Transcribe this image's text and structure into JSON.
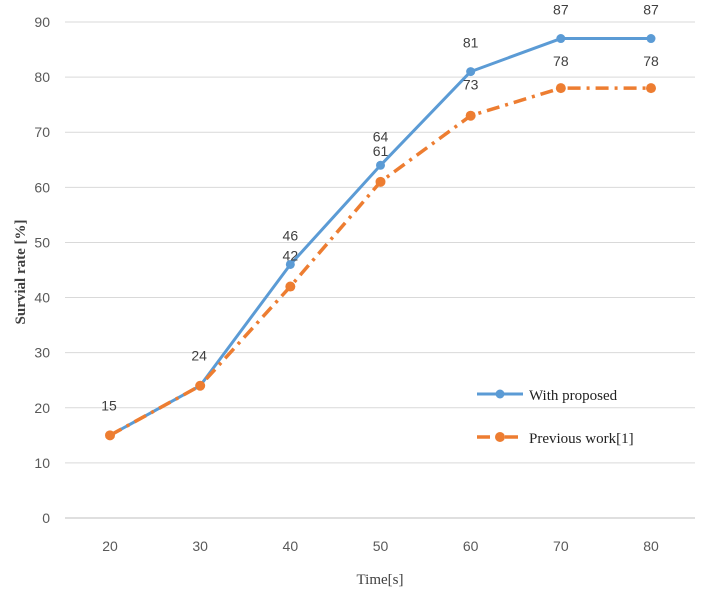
{
  "chart_data": {
    "type": "line",
    "title": "",
    "xlabel": "Time[s]",
    "ylabel": "Survial rate [%]",
    "categories": [
      20,
      30,
      40,
      50,
      60,
      70,
      80
    ],
    "ylim": [
      0,
      90
    ],
    "yticks": [
      0,
      10,
      20,
      30,
      40,
      50,
      60,
      70,
      80,
      90
    ],
    "grid": true,
    "legend_position": "right",
    "series": [
      {
        "name": "With proposed",
        "values": [
          15,
          24,
          46,
          64,
          81,
          87,
          87
        ],
        "color": "#5B9BD5",
        "style": "solid-circle-markers"
      },
      {
        "name": "Previous work[1]",
        "values": [
          15,
          24,
          42,
          61,
          73,
          78,
          78
        ],
        "color": "#ED7D31",
        "style": "dash-dot-circle-markers"
      }
    ]
  }
}
